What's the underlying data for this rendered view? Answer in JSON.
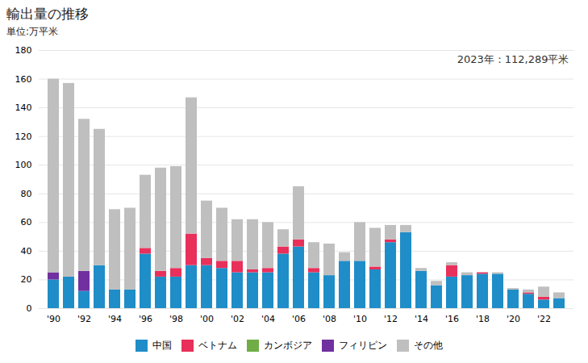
{
  "chart_data": {
    "type": "bar",
    "stacked": true,
    "title": "輸出量の推移",
    "ylabel": "単位:万平米",
    "annotations": [
      "2023年：112,289平米"
    ],
    "categories": [
      "'90",
      null,
      "'92",
      null,
      "'94",
      null,
      "'96",
      null,
      "'98",
      null,
      "'00",
      null,
      "'02",
      null,
      "'04",
      null,
      "'06",
      null,
      "'08",
      null,
      "'10",
      null,
      "'12",
      null,
      "'14",
      null,
      "'16",
      null,
      "'18",
      null,
      "'20",
      null,
      "'22",
      null
    ],
    "series": [
      {
        "name": "中国",
        "color": "#1f8dc8",
        "values": [
          20,
          22,
          12,
          30,
          13,
          13,
          38,
          22,
          22,
          30,
          30,
          28,
          25,
          25,
          25,
          38,
          43,
          25,
          23,
          33,
          33,
          27,
          46,
          53,
          26,
          16,
          22,
          23,
          24,
          24,
          13,
          10,
          6,
          7
        ]
      },
      {
        "name": "ベトナム",
        "color": "#e8305a",
        "values": [
          0,
          0,
          0,
          0,
          0,
          0,
          4,
          4,
          6,
          22,
          5,
          5,
          8,
          2,
          3,
          5,
          5,
          3,
          0,
          0,
          0,
          2,
          2,
          0,
          0,
          0,
          8,
          0,
          1,
          0,
          0,
          1,
          2,
          0
        ]
      },
      {
        "name": "カンボジア",
        "color": "#70ad47",
        "values": [
          0,
          0,
          0,
          0,
          0,
          0,
          0,
          0,
          0,
          0,
          0,
          0,
          0,
          0,
          0,
          0,
          0,
          0,
          0,
          0,
          0,
          0,
          0,
          0,
          0,
          0,
          0,
          0,
          0,
          0,
          0,
          0,
          0,
          0
        ]
      },
      {
        "name": "フィリピン",
        "color": "#7030a0",
        "values": [
          5,
          0,
          14,
          0,
          0,
          0,
          0,
          0,
          0,
          0,
          0,
          0,
          0,
          0,
          0,
          0,
          0,
          0,
          0,
          0,
          0,
          0,
          0,
          0,
          0,
          0,
          0,
          0,
          0,
          0,
          0,
          0,
          0,
          0
        ]
      },
      {
        "name": "その他",
        "color": "#c0bfbf",
        "values": [
          135,
          135,
          106,
          95,
          56,
          57,
          51,
          72,
          71,
          95,
          40,
          37,
          29,
          35,
          32,
          12,
          37,
          18,
          22,
          6,
          27,
          27,
          10,
          5,
          2,
          3,
          2,
          2,
          0,
          1,
          1,
          2,
          7,
          4
        ]
      }
    ],
    "ylim": [
      0,
      180
    ],
    "yticks": [
      0,
      20,
      40,
      60,
      80,
      100,
      120,
      140,
      160,
      180
    ],
    "grid": true,
    "legend": "bottom"
  }
}
